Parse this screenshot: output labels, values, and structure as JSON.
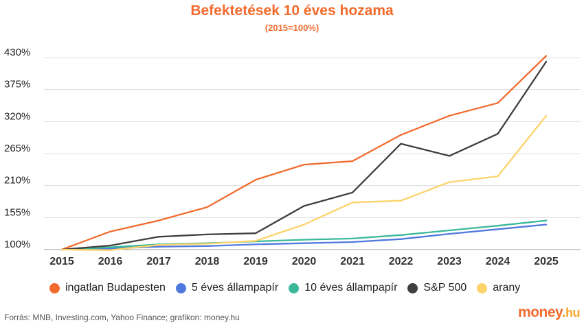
{
  "chart_data": {
    "type": "line",
    "title": "Befektetések 10 éves hozama",
    "subtitle": "(2015=100%)",
    "x": [
      "2015",
      "2016",
      "2017",
      "2018",
      "2019",
      "2020",
      "2021",
      "2022",
      "2023",
      "2024",
      "2025"
    ],
    "yticks": [
      "430%",
      "375%",
      "320%",
      "265%",
      "210%",
      "155%",
      "100%"
    ],
    "ylim": [
      100,
      430
    ],
    "grid": true,
    "legend_position": "bottom",
    "series": [
      {
        "name": "ingatlan Budapesten",
        "color": "#F26B2E",
        "values": [
          100,
          131,
          150,
          173,
          220,
          246,
          252,
          297,
          330,
          352,
          433
        ]
      },
      {
        "name": "5 éves állampapír",
        "color": "#4F79DD",
        "values": [
          100,
          102,
          105,
          106,
          109,
          111,
          113,
          118,
          127,
          135,
          143
        ]
      },
      {
        "name": "10 éves állampapír",
        "color": "#3BB89A",
        "values": [
          100,
          104,
          109,
          111,
          114,
          117,
          119,
          125,
          133,
          141,
          150
        ]
      },
      {
        "name": "S&P 500",
        "color": "#3F3F3F",
        "values": [
          100,
          107,
          122,
          126,
          128,
          175,
          198,
          282,
          261,
          299,
          423
        ]
      },
      {
        "name": "arany",
        "color": "#FDD36A",
        "values": [
          100,
          99,
          108,
          110,
          115,
          143,
          181,
          184,
          216,
          226,
          330
        ]
      }
    ]
  },
  "source": "Forrás: MNB, Investing.com, Yahoo Finance; grafikon: money.hu",
  "logo": {
    "name": "money",
    "dot": ".",
    "tld": "hu"
  }
}
